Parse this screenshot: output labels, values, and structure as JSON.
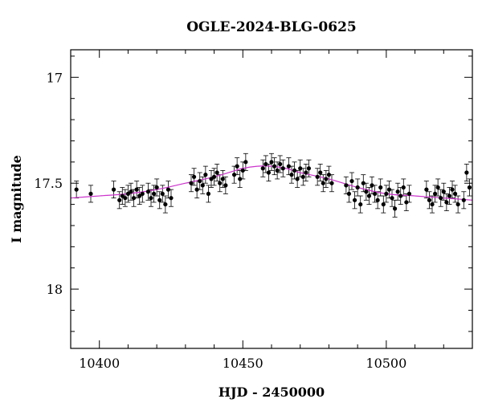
{
  "chart_data": {
    "type": "scatter",
    "title": "OGLE-2024-BLG-0625",
    "xlabel": "HJD - 2450000",
    "ylabel": "I magnitude",
    "xlim": [
      10390,
      10530
    ],
    "ylim": [
      18.28,
      16.87
    ],
    "y_inverted": true,
    "grid": false,
    "x_ticks": [
      10400,
      10450,
      10500
    ],
    "x_tick_labels": [
      "10400",
      "10450",
      "10500"
    ],
    "y_ticks": [
      17,
      17.5,
      18
    ],
    "y_tick_labels": [
      "17",
      "17.5",
      "18"
    ],
    "colors": {
      "points": "#000000",
      "model": "#cc33cc"
    },
    "model": {
      "name": "",
      "x": [
        10390,
        10400,
        10410,
        10420,
        10430,
        10440,
        10445,
        10450,
        10455,
        10460,
        10465,
        10470,
        10480,
        10490,
        10500,
        10510,
        10520,
        10530
      ],
      "y": [
        17.57,
        17.56,
        17.55,
        17.53,
        17.5,
        17.47,
        17.45,
        17.43,
        17.42,
        17.42,
        17.43,
        17.45,
        17.48,
        17.52,
        17.55,
        17.56,
        17.57,
        17.58
      ]
    },
    "series": [
      {
        "x": [
          10392,
          10397,
          10405,
          10407,
          10408,
          10409,
          10410,
          10411,
          10412,
          10413,
          10414,
          10415,
          10417,
          10418,
          10419,
          10420,
          10421,
          10422,
          10423,
          10424,
          10425,
          10432,
          10433,
          10434,
          10435,
          10436,
          10437,
          10438,
          10439,
          10440,
          10441,
          10442,
          10443,
          10444,
          10447,
          10448,
          10449,
          10450,
          10451,
          10457,
          10458,
          10459,
          10460,
          10461,
          10462,
          10463,
          10464,
          10466,
          10467,
          10468,
          10469,
          10470,
          10471,
          10472,
          10473,
          10476,
          10477,
          10478,
          10479,
          10480,
          10481,
          10486,
          10487,
          10488,
          10489,
          10490,
          10491,
          10492,
          10493,
          10494,
          10495,
          10496,
          10497,
          10498,
          10499,
          10500,
          10501,
          10502,
          10503,
          10504,
          10505,
          10506,
          10507,
          10508,
          10514,
          10515,
          10516,
          10517,
          10518,
          10519,
          10520,
          10521,
          10522,
          10523,
          10524,
          10525,
          10527,
          10528,
          10529
        ],
        "y": [
          17.53,
          17.55,
          17.53,
          17.58,
          17.56,
          17.57,
          17.55,
          17.54,
          17.57,
          17.53,
          17.56,
          17.55,
          17.54,
          17.57,
          17.55,
          17.52,
          17.58,
          17.55,
          17.6,
          17.53,
          17.57,
          17.5,
          17.47,
          17.53,
          17.49,
          17.51,
          17.46,
          17.55,
          17.48,
          17.47,
          17.45,
          17.5,
          17.48,
          17.51,
          17.46,
          17.42,
          17.48,
          17.44,
          17.4,
          17.43,
          17.41,
          17.45,
          17.4,
          17.42,
          17.44,
          17.41,
          17.43,
          17.42,
          17.46,
          17.44,
          17.48,
          17.43,
          17.47,
          17.45,
          17.43,
          17.47,
          17.45,
          17.5,
          17.48,
          17.46,
          17.5,
          17.51,
          17.55,
          17.49,
          17.58,
          17.52,
          17.6,
          17.5,
          17.54,
          17.56,
          17.51,
          17.55,
          17.58,
          17.52,
          17.6,
          17.55,
          17.53,
          17.57,
          17.62,
          17.54,
          17.56,
          17.52,
          17.59,
          17.55,
          17.53,
          17.58,
          17.6,
          17.55,
          17.52,
          17.57,
          17.54,
          17.59,
          17.56,
          17.53,
          17.55,
          17.6,
          17.58,
          17.45,
          17.52
        ]
      }
    ]
  }
}
